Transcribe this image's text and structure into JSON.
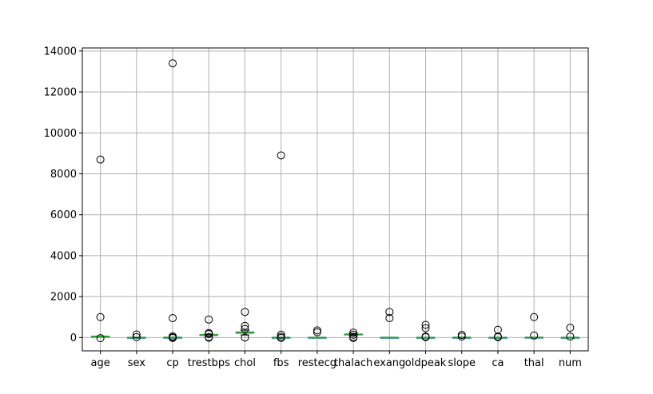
{
  "chart_data": {
    "type": "box",
    "categories": [
      "age",
      "sex",
      "cp",
      "trestbps",
      "chol",
      "fbs",
      "restecg",
      "thalach",
      "exang",
      "oldpeak",
      "slope",
      "ca",
      "thal",
      "num"
    ],
    "ylim": [
      -650,
      14150
    ],
    "yticks": [
      0,
      2000,
      4000,
      6000,
      8000,
      10000,
      12000,
      14000
    ],
    "grid": true,
    "colors": {
      "box": "#1f77b4",
      "median": "#2ca02c",
      "grid": "#b0b0b0",
      "flier": "#000000"
    },
    "boxes": [
      {
        "name": "age",
        "q1": 48,
        "median": 55,
        "q3": 61,
        "whisker_low": 29,
        "whisker_high": 77,
        "outliers": [
          8700,
          1000,
          -30
        ]
      },
      {
        "name": "sex",
        "q1": 0,
        "median": 1,
        "q3": 1,
        "whisker_low": 0,
        "whisker_high": 1,
        "outliers": [
          150,
          20
        ]
      },
      {
        "name": "cp",
        "q1": 3,
        "median": 4,
        "q3": 4,
        "whisker_low": 1,
        "whisker_high": 4,
        "outliers": [
          13400,
          950,
          60,
          10,
          -20
        ]
      },
      {
        "name": "trestbps",
        "q1": 120,
        "median": 130,
        "q3": 140,
        "whisker_low": 94,
        "whisker_high": 170,
        "outliers": [
          880,
          220,
          170,
          20,
          -10
        ]
      },
      {
        "name": "chol",
        "q1": 211,
        "median": 241,
        "q3": 275,
        "whisker_low": 126,
        "whisker_high": 360,
        "outliers": [
          1250,
          570,
          420,
          0
        ]
      },
      {
        "name": "fbs",
        "q1": 0,
        "median": 0,
        "q3": 0,
        "whisker_low": 0,
        "whisker_high": 0,
        "outliers": [
          8900,
          140,
          40,
          -20
        ]
      },
      {
        "name": "restecg",
        "q1": 0,
        "median": 1,
        "q3": 2,
        "whisker_low": 0,
        "whisker_high": 2,
        "outliers": [
          350,
          260
        ]
      },
      {
        "name": "thalach",
        "q1": 133,
        "median": 153,
        "q3": 166,
        "whisker_low": 95,
        "whisker_high": 202,
        "outliers": [
          240,
          140,
          20,
          -20
        ]
      },
      {
        "name": "exang",
        "q1": 0,
        "median": 0,
        "q3": 1,
        "whisker_low": 0,
        "whisker_high": 1,
        "outliers": [
          1250,
          950
        ]
      },
      {
        "name": "oldpeak",
        "q1": 0,
        "median": 1,
        "q3": 2,
        "whisker_low": 0,
        "whisker_high": 4,
        "outliers": [
          620,
          460,
          50,
          20
        ]
      },
      {
        "name": "slope",
        "q1": 1,
        "median": 2,
        "q3": 2,
        "whisker_low": 1,
        "whisker_high": 3,
        "outliers": [
          130,
          50
        ]
      },
      {
        "name": "ca",
        "q1": 0,
        "median": 0,
        "q3": 1,
        "whisker_low": 0,
        "whisker_high": 2,
        "outliers": [
          380,
          50,
          20
        ]
      },
      {
        "name": "thal",
        "q1": 3,
        "median": 3,
        "q3": 7,
        "whisker_low": 3,
        "whisker_high": 7,
        "outliers": [
          1000,
          100
        ]
      },
      {
        "name": "num",
        "q1": 0,
        "median": 0,
        "q3": 2,
        "whisker_low": 0,
        "whisker_high": 4,
        "outliers": [
          480,
          50
        ]
      }
    ]
  }
}
